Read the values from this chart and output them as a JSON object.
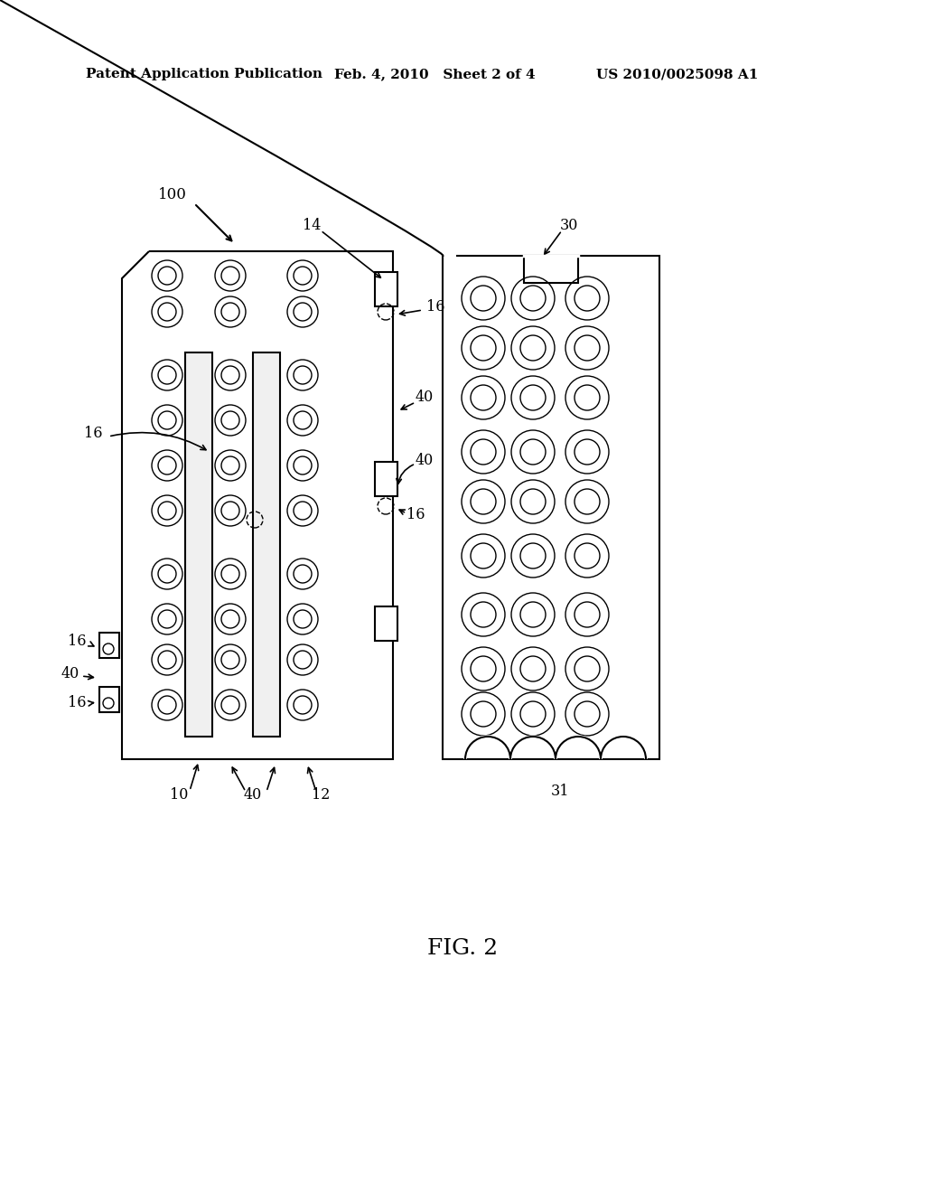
{
  "bg_color": "#ffffff",
  "header_left": "Patent Application Publication",
  "header_mid": "Feb. 4, 2010   Sheet 2 of 4",
  "header_right": "US 2010/0025098 A1",
  "fig_label": "FIG. 2",
  "label_100": "100",
  "label_14": "14",
  "label_16": "16",
  "label_40": "40",
  "label_10": "10",
  "label_12": "12",
  "label_30": "30",
  "label_31": "31"
}
